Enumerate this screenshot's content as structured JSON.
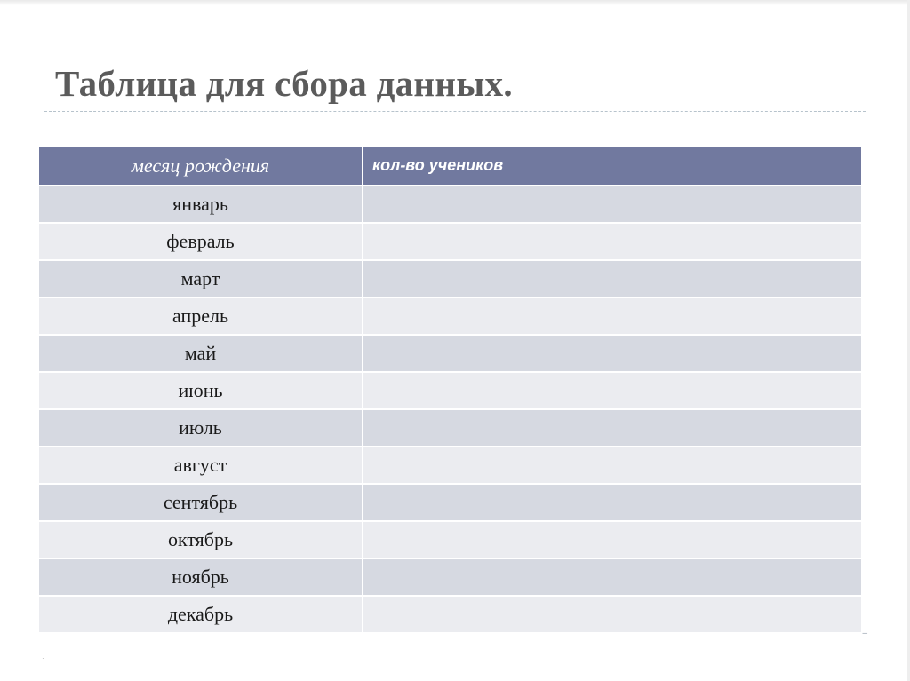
{
  "slide": {
    "title": "Таблица для сбора данных."
  },
  "table": {
    "headers": [
      "месяц рождения",
      "кол-во учеников"
    ],
    "rows": [
      [
        "январь",
        ""
      ],
      [
        "февраль",
        ""
      ],
      [
        "март",
        ""
      ],
      [
        "апрель",
        ""
      ],
      [
        "май",
        ""
      ],
      [
        "июнь",
        ""
      ],
      [
        "июль",
        ""
      ],
      [
        "август",
        ""
      ],
      [
        "сентябрь",
        ""
      ],
      [
        "октябрь",
        ""
      ],
      [
        "ноябрь",
        ""
      ],
      [
        "декабрь",
        ""
      ]
    ]
  },
  "colors": {
    "header_bg": "#71799f",
    "row_odd_bg": "#d6d9e1",
    "row_even_bg": "#ebecf0",
    "title_color": "#5b5b5b"
  }
}
